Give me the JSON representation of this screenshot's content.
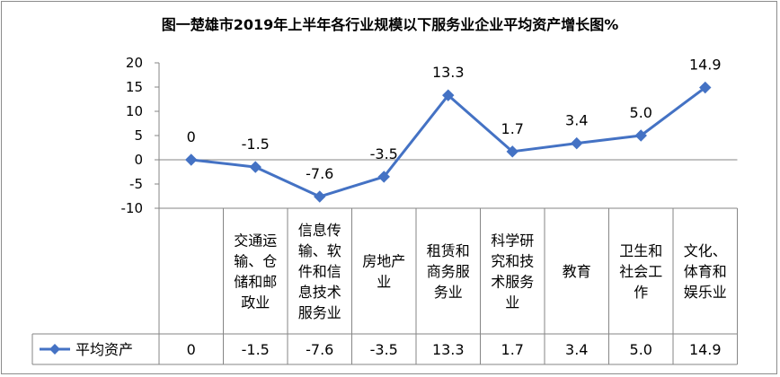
{
  "chart_data": {
    "type": "line",
    "title": "图一楚雄市2019年上半年各行业规模以下服务业企业平均资产增长图%",
    "categories": [
      "",
      "交通运输、仓储和邮政业",
      "信息传输、软件和信息技术服务业",
      "房地产业",
      "租赁和商务服务业",
      "科学研究和技术服务业",
      "教育",
      "卫生和社会工作",
      "文化、体育和娱乐业"
    ],
    "category_lines": [
      [],
      [
        "交通运",
        "输、仓",
        "储和邮",
        "政业"
      ],
      [
        "信息传",
        "输、软",
        "件和信",
        "息技术",
        "服务业"
      ],
      [
        "房地产",
        "业"
      ],
      [
        "租赁和",
        "商务服",
        "务业"
      ],
      [
        "科学研",
        "究和技",
        "术服务",
        "业"
      ],
      [
        "教育"
      ],
      [
        "卫生和",
        "社会工",
        "作"
      ],
      [
        "文化、",
        "体育和",
        "娱乐业"
      ]
    ],
    "series": [
      {
        "name": "平均资产",
        "values": [
          0,
          -1.5,
          -7.6,
          -3.5,
          13.3,
          1.7,
          3.4,
          5.0,
          14.9
        ],
        "labels": [
          "0",
          "-1.5",
          "-7.6",
          "-3.5",
          "13.3",
          "1.7",
          "3.4",
          "5.0",
          "14.9"
        ],
        "color": "#4472c4"
      }
    ],
    "ylim": [
      -10,
      20
    ],
    "yticks": [
      "20",
      "15",
      "10",
      "5",
      "0",
      "-5",
      "-10"
    ],
    "grid": false,
    "legend": "data-table"
  }
}
